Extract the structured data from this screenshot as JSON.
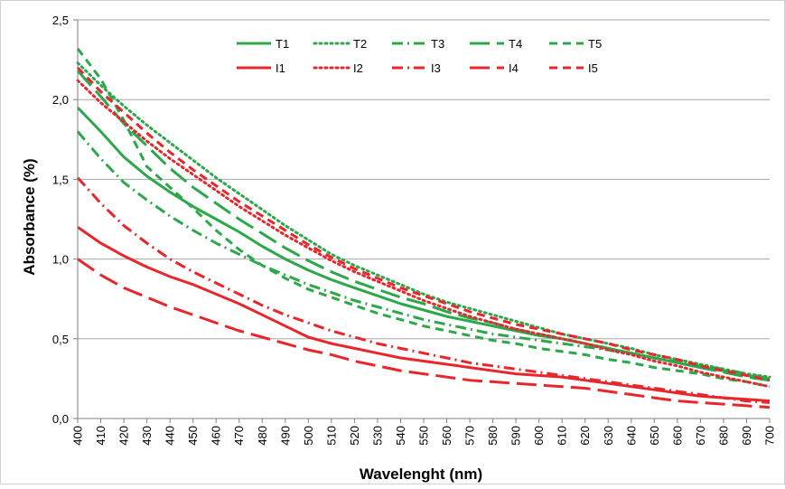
{
  "chart_data": {
    "type": "line",
    "title": "",
    "xlabel": "Wavelenght (nm)",
    "ylabel": "Absorbance (%)",
    "xlim": [
      400,
      700
    ],
    "ylim": [
      0,
      2.5
    ],
    "grid": true,
    "legend_position": "top-right",
    "x": [
      400,
      410,
      420,
      430,
      440,
      450,
      460,
      470,
      480,
      490,
      500,
      510,
      520,
      530,
      540,
      550,
      560,
      570,
      580,
      590,
      600,
      610,
      620,
      630,
      640,
      650,
      660,
      670,
      680,
      690,
      700
    ],
    "x_tick_labels": [
      "400",
      "410",
      "420",
      "430",
      "440",
      "450",
      "460",
      "470",
      "480",
      "490",
      "500",
      "510",
      "520",
      "530",
      "540",
      "550",
      "560",
      "570",
      "580",
      "590",
      "600",
      "610",
      "620",
      "630",
      "640",
      "650",
      "660",
      "670",
      "680",
      "690",
      "700"
    ],
    "y_ticks": [
      0,
      0.5,
      1.0,
      1.5,
      2.0,
      2.5
    ],
    "y_tick_labels": [
      "0,0",
      "0,5",
      "1,0",
      "1,5",
      "2,0",
      "2,5"
    ],
    "series": [
      {
        "name": "T1",
        "color": "#2ca84a",
        "style": "solid",
        "values": [
          1.95,
          1.8,
          1.64,
          1.52,
          1.42,
          1.33,
          1.25,
          1.17,
          1.08,
          1.0,
          0.93,
          0.87,
          0.82,
          0.77,
          0.72,
          0.68,
          0.64,
          0.61,
          0.58,
          0.55,
          0.52,
          0.5,
          0.47,
          0.44,
          0.41,
          0.38,
          0.35,
          0.32,
          0.3,
          0.27,
          0.25
        ]
      },
      {
        "name": "T2",
        "color": "#2ca84a",
        "style": "dot",
        "values": [
          2.23,
          2.09,
          1.96,
          1.84,
          1.73,
          1.62,
          1.51,
          1.41,
          1.31,
          1.21,
          1.12,
          1.03,
          0.96,
          0.9,
          0.84,
          0.78,
          0.73,
          0.69,
          0.65,
          0.61,
          0.57,
          0.53,
          0.5,
          0.47,
          0.44,
          0.4,
          0.37,
          0.34,
          0.31,
          0.28,
          0.26
        ]
      },
      {
        "name": "T3",
        "color": "#2ca84a",
        "style": "dashdot",
        "values": [
          1.8,
          1.63,
          1.48,
          1.37,
          1.27,
          1.18,
          1.1,
          1.03,
          0.96,
          0.9,
          0.84,
          0.79,
          0.74,
          0.7,
          0.66,
          0.62,
          0.59,
          0.56,
          0.53,
          0.51,
          0.49,
          0.47,
          0.45,
          0.43,
          0.41,
          0.38,
          0.36,
          0.33,
          0.31,
          0.28,
          0.25
        ]
      },
      {
        "name": "T4",
        "color": "#2ca84a",
        "style": "longdash",
        "values": [
          2.18,
          2.02,
          1.85,
          1.71,
          1.57,
          1.45,
          1.35,
          1.25,
          1.16,
          1.07,
          0.99,
          0.92,
          0.86,
          0.81,
          0.76,
          0.72,
          0.67,
          0.63,
          0.6,
          0.56,
          0.53,
          0.5,
          0.47,
          0.44,
          0.41,
          0.38,
          0.35,
          0.32,
          0.29,
          0.26,
          0.24
        ]
      },
      {
        "name": "T5",
        "color": "#2ca84a",
        "style": "dash",
        "values": [
          2.32,
          2.13,
          1.87,
          1.58,
          1.45,
          1.32,
          1.18,
          1.06,
          0.96,
          0.88,
          0.81,
          0.76,
          0.71,
          0.66,
          0.62,
          0.58,
          0.55,
          0.52,
          0.49,
          0.47,
          0.44,
          0.42,
          0.4,
          0.37,
          0.35,
          0.32,
          0.3,
          0.28,
          0.25,
          0.23,
          0.2
        ]
      },
      {
        "name": "I1",
        "color": "#e8262b",
        "style": "solid",
        "values": [
          1.2,
          1.1,
          1.02,
          0.95,
          0.89,
          0.84,
          0.78,
          0.72,
          0.65,
          0.58,
          0.51,
          0.47,
          0.44,
          0.41,
          0.38,
          0.36,
          0.34,
          0.32,
          0.3,
          0.28,
          0.27,
          0.26,
          0.24,
          0.22,
          0.2,
          0.18,
          0.16,
          0.14,
          0.13,
          0.12,
          0.11
        ]
      },
      {
        "name": "I2",
        "color": "#e8262b",
        "style": "dot",
        "values": [
          2.12,
          1.98,
          1.86,
          1.74,
          1.63,
          1.53,
          1.43,
          1.33,
          1.24,
          1.15,
          1.07,
          0.99,
          0.92,
          0.86,
          0.8,
          0.74,
          0.69,
          0.64,
          0.6,
          0.56,
          0.53,
          0.5,
          0.47,
          0.43,
          0.4,
          0.36,
          0.33,
          0.29,
          0.26,
          0.23,
          0.2
        ]
      },
      {
        "name": "I3",
        "color": "#e8262b",
        "style": "dashdot",
        "values": [
          1.51,
          1.35,
          1.21,
          1.1,
          1.0,
          0.92,
          0.85,
          0.78,
          0.71,
          0.65,
          0.6,
          0.55,
          0.51,
          0.47,
          0.44,
          0.41,
          0.38,
          0.35,
          0.33,
          0.31,
          0.29,
          0.27,
          0.25,
          0.23,
          0.21,
          0.19,
          0.17,
          0.15,
          0.13,
          0.11,
          0.1
        ]
      },
      {
        "name": "I4",
        "color": "#e8262b",
        "style": "longdash",
        "values": [
          1.0,
          0.9,
          0.82,
          0.76,
          0.7,
          0.65,
          0.6,
          0.55,
          0.51,
          0.47,
          0.43,
          0.4,
          0.36,
          0.33,
          0.3,
          0.28,
          0.26,
          0.24,
          0.23,
          0.22,
          0.21,
          0.2,
          0.19,
          0.17,
          0.15,
          0.13,
          0.11,
          0.1,
          0.09,
          0.08,
          0.07
        ]
      },
      {
        "name": "I5",
        "color": "#e8262b",
        "style": "dash",
        "values": [
          2.2,
          2.05,
          1.92,
          1.79,
          1.67,
          1.56,
          1.46,
          1.36,
          1.27,
          1.18,
          1.09,
          1.01,
          0.94,
          0.88,
          0.82,
          0.77,
          0.72,
          0.67,
          0.63,
          0.59,
          0.56,
          0.53,
          0.5,
          0.47,
          0.43,
          0.4,
          0.37,
          0.33,
          0.3,
          0.27,
          0.24
        ]
      }
    ]
  }
}
